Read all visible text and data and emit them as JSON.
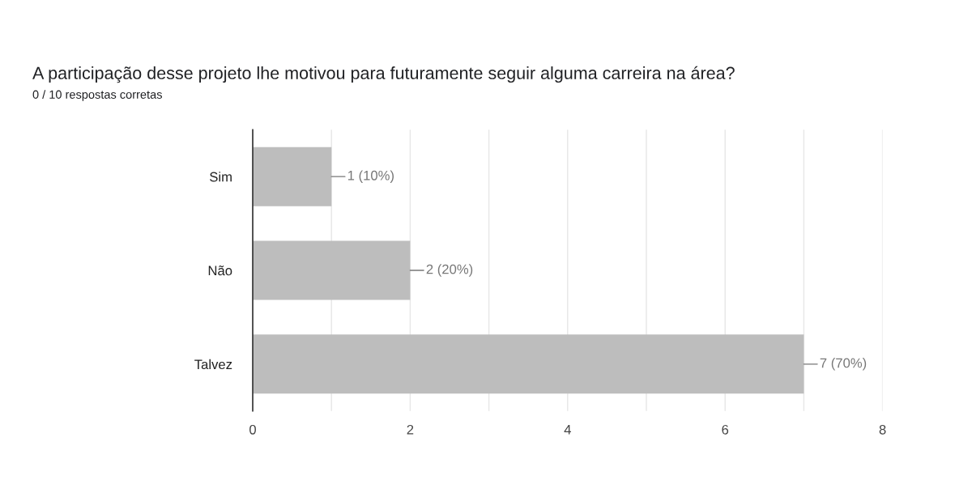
{
  "chart_data": {
    "type": "bar",
    "orientation": "horizontal",
    "title": "A participação desse projeto lhe motivou para futuramente seguir alguma carreira na área?",
    "subtitle": "0 / 10 respostas corretas",
    "categories": [
      "Sim",
      "Não",
      "Talvez"
    ],
    "values": [
      1,
      2,
      7
    ],
    "value_labels": [
      "1 (10%)",
      "2 (20%)",
      "7 (70%)"
    ],
    "color": "#bdbdbd",
    "xlim": [
      0,
      8
    ],
    "xticks": [
      0,
      {
        "value": 1,
        "label": null
      },
      2,
      {
        "value": 3,
        "label": null
      },
      4,
      {
        "value": 5,
        "label": null
      },
      6,
      {
        "value": 7,
        "label": null
      },
      8
    ],
    "grid": "x",
    "legend": false
  }
}
